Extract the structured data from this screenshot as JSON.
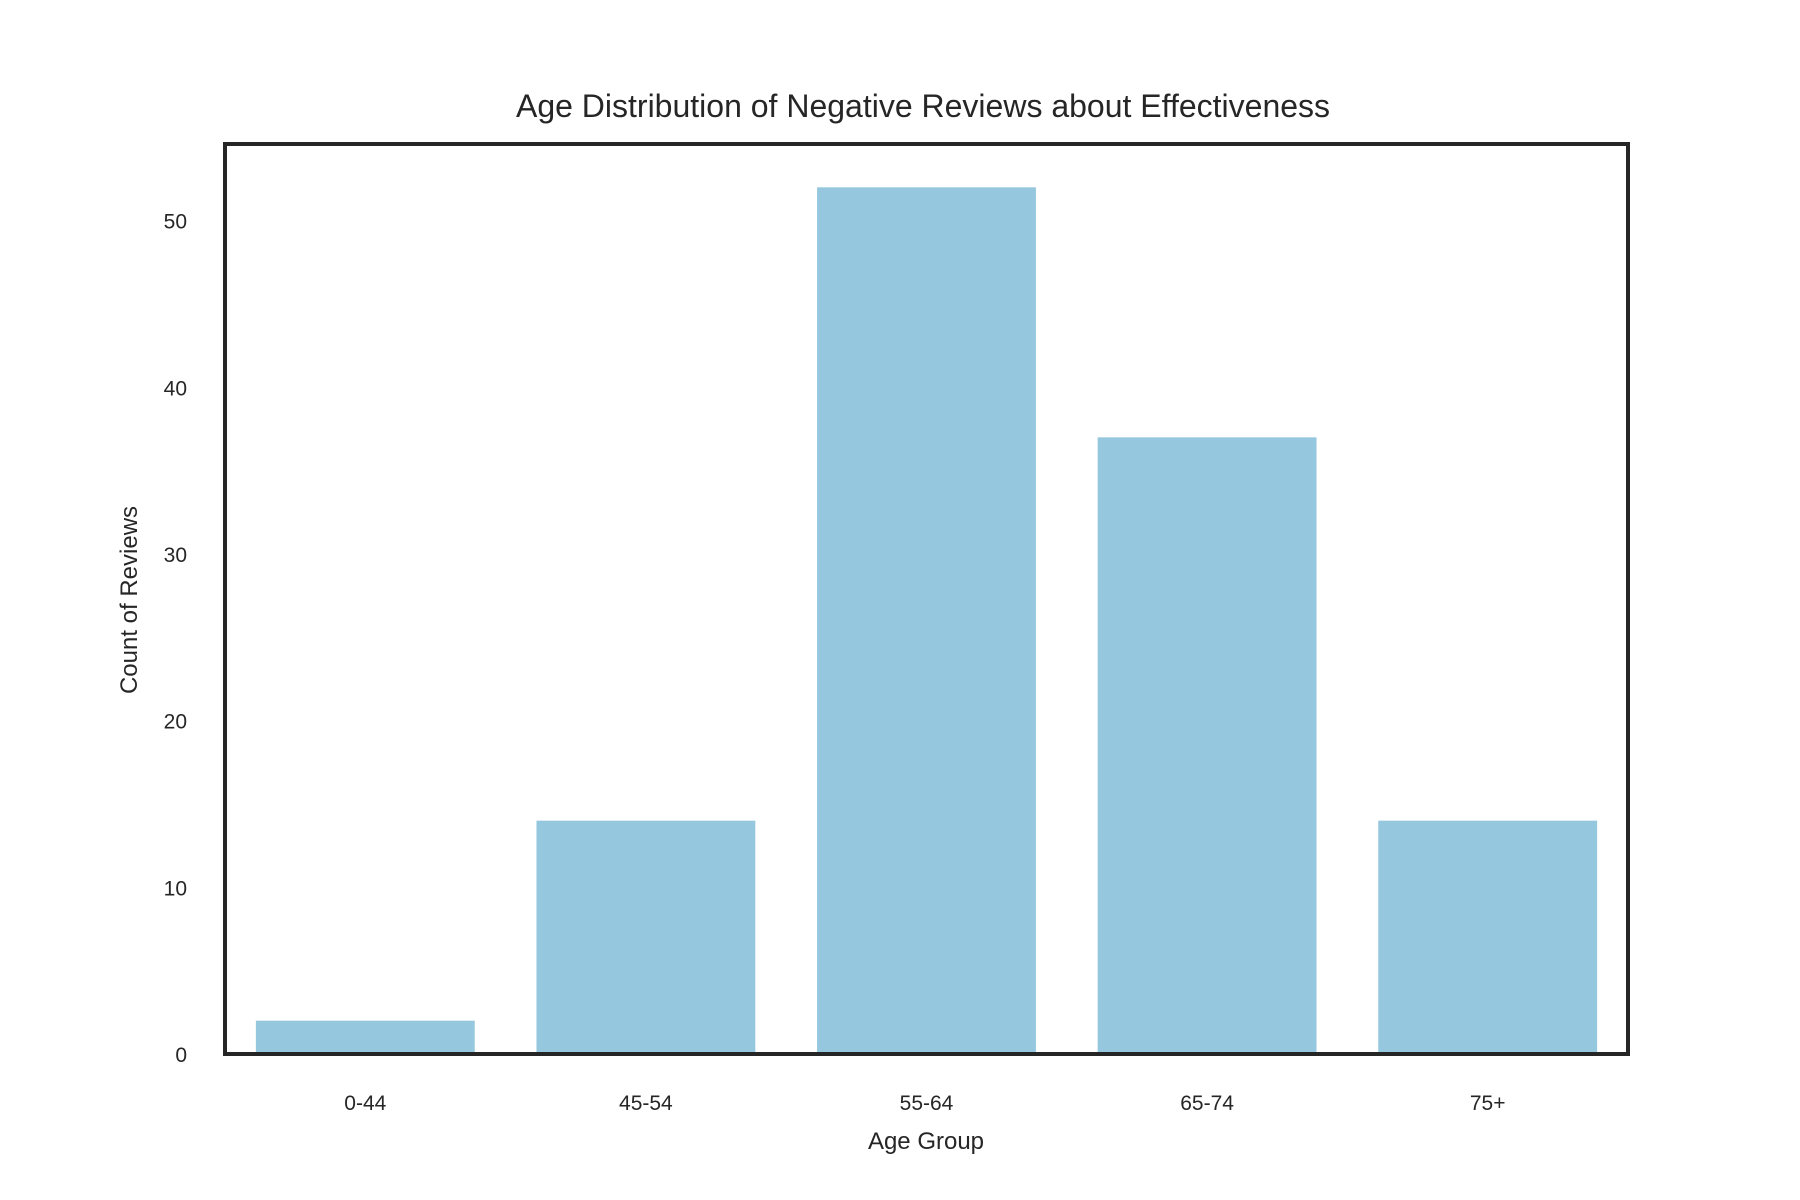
{
  "chart_data": {
    "type": "bar",
    "title": "Age Distribution of Negative Reviews about Effectiveness",
    "xlabel": "Age Group",
    "ylabel": "Count of Reviews",
    "categories": [
      "0-44",
      "45-54",
      "55-64",
      "65-74",
      "75+"
    ],
    "values": [
      2,
      14,
      52,
      37,
      14
    ],
    "ylim": [
      0,
      54.6
    ],
    "yticks": [
      "0",
      "10",
      "20",
      "30",
      "40",
      "50"
    ],
    "grid": false,
    "legend": "none",
    "bar_color": "#95c8de",
    "frame_color": "#262626"
  }
}
